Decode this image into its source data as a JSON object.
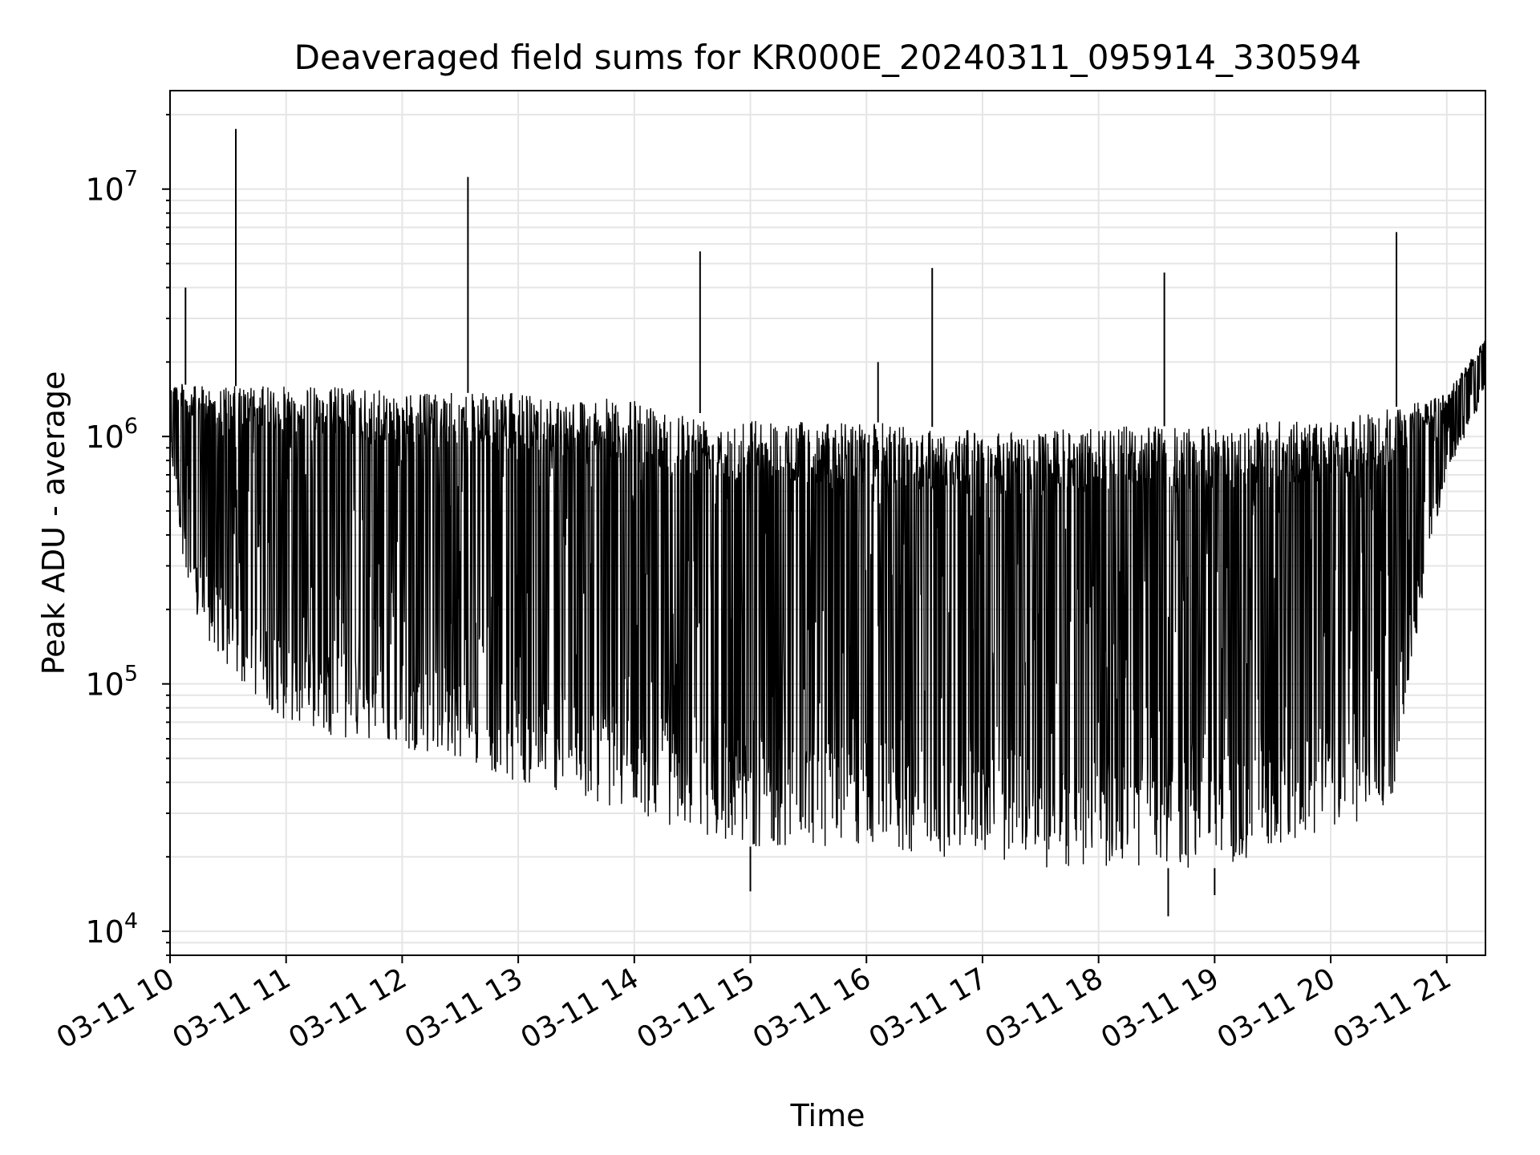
{
  "chart_data": {
    "type": "line",
    "title": "Deaveraged field sums for KR000E_20240311_095914_330594",
    "xlabel": "Time",
    "ylabel": "Peak ADU - average",
    "yscale": "log",
    "ylim": [
      8000,
      25000000
    ],
    "xlim": [
      "2024-03-11T10:00",
      "2024-03-11T21:20"
    ],
    "grid": true,
    "line_color": "#000000",
    "grid_color": "#e5e5e5",
    "x_ticks": [
      "03-11 10",
      "03-11 11",
      "03-11 12",
      "03-11 13",
      "03-11 14",
      "03-11 15",
      "03-11 16",
      "03-11 17",
      "03-11 18",
      "03-11 19",
      "03-11 20",
      "03-11 21"
    ],
    "x_tick_hours": [
      10,
      11,
      12,
      13,
      14,
      15,
      16,
      17,
      18,
      19,
      20,
      21
    ],
    "y_ticks": [
      {
        "value": 10000,
        "base": "10",
        "exp": "4"
      },
      {
        "value": 100000,
        "base": "10",
        "exp": "5"
      },
      {
        "value": 1000000,
        "base": "10",
        "exp": "6"
      },
      {
        "value": 10000000,
        "base": "10",
        "exp": "7"
      }
    ],
    "series": [
      {
        "envelope": [
          {
            "x": "10:00",
            "upper": 1700000,
            "lower": 900000
          },
          {
            "x": "10:10",
            "upper": 1600000,
            "lower": 200000
          },
          {
            "x": "10:30",
            "upper": 1600000,
            "lower": 110000
          },
          {
            "x": "11:00",
            "upper": 1600000,
            "lower": 70000
          },
          {
            "x": "11:30",
            "upper": 1600000,
            "lower": 60000
          },
          {
            "x": "12:00",
            "upper": 1500000,
            "lower": 55000
          },
          {
            "x": "12:30",
            "upper": 1500000,
            "lower": 50000
          },
          {
            "x": "13:00",
            "upper": 1500000,
            "lower": 40000
          },
          {
            "x": "13:30",
            "upper": 1450000,
            "lower": 35000
          },
          {
            "x": "14:00",
            "upper": 1400000,
            "lower": 30000
          },
          {
            "x": "14:30",
            "upper": 1250000,
            "lower": 25000
          },
          {
            "x": "15:00",
            "upper": 1200000,
            "lower": 22000
          },
          {
            "x": "15:30",
            "upper": 1150000,
            "lower": 22000
          },
          {
            "x": "16:00",
            "upper": 1150000,
            "lower": 22000
          },
          {
            "x": "16:30",
            "upper": 1100000,
            "lower": 20000
          },
          {
            "x": "17:00",
            "upper": 1050000,
            "lower": 20000
          },
          {
            "x": "17:30",
            "upper": 1050000,
            "lower": 18000
          },
          {
            "x": "18:00",
            "upper": 1100000,
            "lower": 18000
          },
          {
            "x": "18:30",
            "upper": 1100000,
            "lower": 18000
          },
          {
            "x": "19:00",
            "upper": 1100000,
            "lower": 18000
          },
          {
            "x": "19:30",
            "upper": 1150000,
            "lower": 20000
          },
          {
            "x": "20:00",
            "upper": 1150000,
            "lower": 25000
          },
          {
            "x": "20:30",
            "upper": 1300000,
            "lower": 28000
          },
          {
            "x": "20:50",
            "upper": 1400000,
            "lower": 300000
          },
          {
            "x": "21:00",
            "upper": 1500000,
            "lower": 700000
          },
          {
            "x": "21:20",
            "upper": 2500000,
            "lower": 1500000
          }
        ],
        "spikes": [
          {
            "x": "10:08",
            "value": 4000000
          },
          {
            "x": "10:34",
            "value": 17500000
          },
          {
            "x": "12:34",
            "value": 11200000
          },
          {
            "x": "14:34",
            "value": 5600000
          },
          {
            "x": "16:06",
            "value": 2000000
          },
          {
            "x": "16:34",
            "value": 4800000
          },
          {
            "x": "18:34",
            "value": 4600000
          },
          {
            "x": "20:34",
            "value": 6700000
          }
        ],
        "dips": [
          {
            "x": "18:36",
            "value": 11500
          },
          {
            "x": "15:00",
            "value": 14500
          },
          {
            "x": "19:00",
            "value": 14000
          }
        ]
      }
    ]
  }
}
